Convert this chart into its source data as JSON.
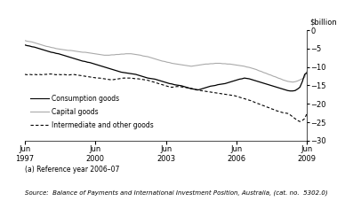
{
  "title": "",
  "ylabel": "$billion",
  "ylim": [
    -30,
    0
  ],
  "yticks": [
    0,
    -5,
    -10,
    -15,
    -20,
    -25,
    -30
  ],
  "note": "(a) Reference year 2006–07",
  "source": "Source:  Balance of Payments and International Investment Position, Australia, (cat. no.  5302.0)",
  "legend": [
    "Consumption goods",
    "Capital goods",
    "Intermediate and other goods"
  ],
  "consumption_goods": [
    -4.0,
    -4.2,
    -4.3,
    -4.5,
    -4.6,
    -4.8,
    -5.0,
    -5.2,
    -5.4,
    -5.6,
    -5.8,
    -6.0,
    -6.1,
    -6.3,
    -6.4,
    -6.6,
    -6.8,
    -7.0,
    -7.2,
    -7.4,
    -7.6,
    -7.8,
    -8.0,
    -8.2,
    -8.4,
    -8.5,
    -8.7,
    -8.8,
    -9.0,
    -9.2,
    -9.4,
    -9.6,
    -9.8,
    -10.0,
    -10.2,
    -10.4,
    -10.6,
    -10.8,
    -11.0,
    -11.2,
    -11.4,
    -11.5,
    -11.6,
    -11.7,
    -11.8,
    -11.9,
    -12.0,
    -12.2,
    -12.4,
    -12.6,
    -12.8,
    -13.0,
    -13.1,
    -13.2,
    -13.3,
    -13.5,
    -13.7,
    -13.9,
    -14.1,
    -14.3,
    -14.5,
    -14.6,
    -14.8,
    -14.9,
    -15.0,
    -15.1,
    -15.3,
    -15.5,
    -15.7,
    -15.9,
    -16.0,
    -16.1,
    -16.2,
    -16.0,
    -15.8,
    -15.6,
    -15.4,
    -15.2,
    -15.1,
    -15.0,
    -14.8,
    -14.7,
    -14.6,
    -14.5,
    -14.3,
    -14.1,
    -13.9,
    -13.7,
    -13.5,
    -13.3,
    -13.2,
    -13.0,
    -13.1,
    -13.2,
    -13.4,
    -13.6,
    -13.8,
    -14.0,
    -14.2,
    -14.4,
    -14.6,
    -14.8,
    -15.0,
    -15.2,
    -15.4,
    -15.6,
    -15.8,
    -16.0,
    -16.2,
    -16.4,
    -16.5,
    -16.5,
    -16.4,
    -16.0,
    -15.5,
    -14.0,
    -12.0,
    -11.5
  ],
  "capital_goods": [
    -2.8,
    -3.0,
    -3.1,
    -3.2,
    -3.4,
    -3.6,
    -3.8,
    -4.0,
    -4.2,
    -4.4,
    -4.5,
    -4.7,
    -4.8,
    -5.0,
    -5.1,
    -5.2,
    -5.3,
    -5.4,
    -5.5,
    -5.5,
    -5.6,
    -5.7,
    -5.8,
    -5.9,
    -6.0,
    -6.0,
    -6.1,
    -6.2,
    -6.3,
    -6.4,
    -6.5,
    -6.6,
    -6.7,
    -6.8,
    -6.8,
    -6.8,
    -6.7,
    -6.7,
    -6.6,
    -6.6,
    -6.5,
    -6.5,
    -6.4,
    -6.4,
    -6.4,
    -6.5,
    -6.6,
    -6.7,
    -6.8,
    -7.0,
    -7.1,
    -7.2,
    -7.4,
    -7.6,
    -7.8,
    -8.0,
    -8.2,
    -8.4,
    -8.5,
    -8.7,
    -8.8,
    -9.0,
    -9.1,
    -9.2,
    -9.3,
    -9.4,
    -9.5,
    -9.6,
    -9.7,
    -9.8,
    -9.7,
    -9.6,
    -9.5,
    -9.4,
    -9.3,
    -9.2,
    -9.2,
    -9.1,
    -9.1,
    -9.0,
    -9.0,
    -9.0,
    -9.1,
    -9.1,
    -9.2,
    -9.2,
    -9.3,
    -9.4,
    -9.5,
    -9.6,
    -9.7,
    -9.8,
    -10.0,
    -10.1,
    -10.3,
    -10.5,
    -10.7,
    -11.0,
    -11.2,
    -11.5,
    -11.7,
    -12.0,
    -12.2,
    -12.5,
    -12.7,
    -13.0,
    -13.2,
    -13.5,
    -13.7,
    -13.9,
    -14.0,
    -14.1,
    -14.0,
    -13.8,
    -13.5,
    -13.2,
    -12.8,
    -11.0
  ],
  "intermediate_goods": [
    -12.0,
    -12.1,
    -12.0,
    -12.1,
    -12.0,
    -12.1,
    -12.0,
    -12.1,
    -12.0,
    -12.0,
    -11.9,
    -11.9,
    -12.0,
    -12.1,
    -12.0,
    -12.1,
    -12.0,
    -12.1,
    -12.2,
    -12.1,
    -12.0,
    -12.1,
    -12.2,
    -12.3,
    -12.4,
    -12.5,
    -12.6,
    -12.7,
    -12.8,
    -12.9,
    -13.0,
    -13.0,
    -13.1,
    -13.2,
    -13.3,
    -13.4,
    -13.5,
    -13.4,
    -13.3,
    -13.2,
    -13.1,
    -13.0,
    -13.0,
    -13.0,
    -13.0,
    -13.1,
    -13.2,
    -13.2,
    -13.3,
    -13.4,
    -13.5,
    -13.6,
    -13.8,
    -14.0,
    -14.2,
    -14.4,
    -14.6,
    -14.8,
    -15.0,
    -15.2,
    -15.4,
    -15.5,
    -15.4,
    -15.3,
    -15.3,
    -15.4,
    -15.5,
    -15.6,
    -15.7,
    -15.8,
    -16.0,
    -16.2,
    -16.3,
    -16.4,
    -16.5,
    -16.6,
    -16.7,
    -16.8,
    -16.9,
    -17.0,
    -17.1,
    -17.2,
    -17.3,
    -17.4,
    -17.5,
    -17.6,
    -17.7,
    -17.8,
    -18.0,
    -18.2,
    -18.4,
    -18.6,
    -18.8,
    -19.0,
    -19.2,
    -19.5,
    -19.8,
    -20.0,
    -20.3,
    -20.5,
    -20.8,
    -21.0,
    -21.3,
    -21.5,
    -21.8,
    -22.0,
    -22.2,
    -22.4,
    -22.5,
    -22.6,
    -23.0,
    -23.5,
    -24.0,
    -24.5,
    -24.8,
    -24.5,
    -24.0,
    -22.5
  ],
  "consumption_color": "#000000",
  "capital_color": "#aaaaaa",
  "intermediate_color": "#000000",
  "background_color": "#ffffff"
}
